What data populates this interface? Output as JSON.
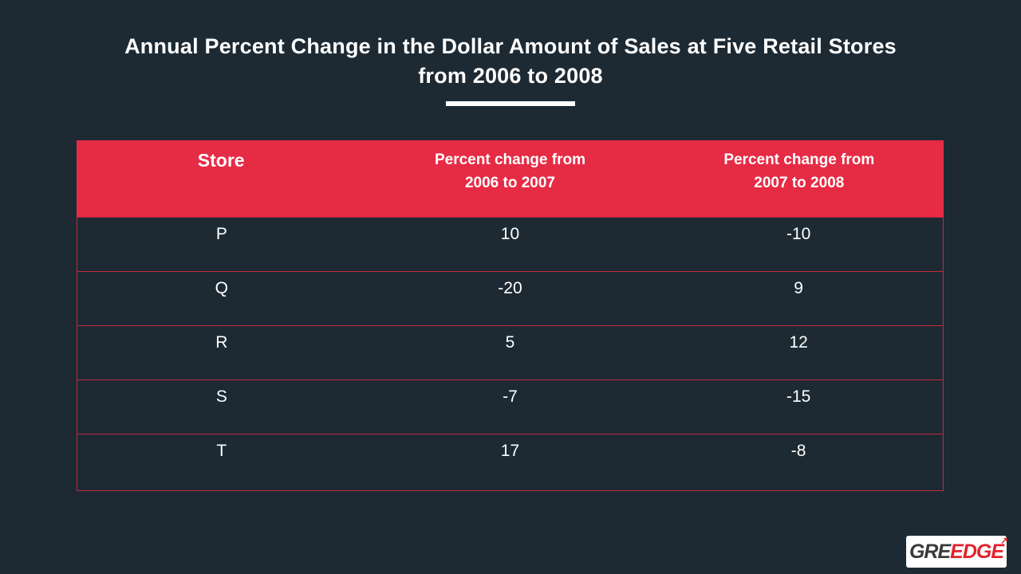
{
  "colors": {
    "background": "#1d2a34",
    "header_bg": "#e62b45",
    "table_border": "#c2293f",
    "title_text": "#ffffff",
    "cell_text": "#ffffff",
    "logo_bg": "#ffffff",
    "logo_gre_color": "#3a3a3a",
    "logo_edge_color": "#e1232d"
  },
  "title": {
    "line1": "Annual Percent Change in the Dollar Amount of Sales at Five Retail Stores",
    "line2": "from 2006 to 2008"
  },
  "table": {
    "header": {
      "col1": "Store",
      "col2_line1": "Percent change from",
      "col2_line2": "2006 to 2007",
      "col3_line1": "Percent change from",
      "col3_line2": "2007 to 2008"
    },
    "rows": [
      {
        "store": "P",
        "pct_2006_2007": "10",
        "pct_2007_2008": "-10"
      },
      {
        "store": "Q",
        "pct_2006_2007": "-20",
        "pct_2007_2008": "9"
      },
      {
        "store": "R",
        "pct_2006_2007": "5",
        "pct_2007_2008": "12"
      },
      {
        "store": "S",
        "pct_2006_2007": "-7",
        "pct_2007_2008": "-15"
      },
      {
        "store": "T",
        "pct_2006_2007": "17",
        "pct_2007_2008": "-8"
      }
    ]
  },
  "chart_data": {
    "type": "table",
    "title": "Annual Percent Change in the Dollar Amount of Sales at Five Retail Stores from 2006 to 2008",
    "columns": [
      "Store",
      "Percent change from 2006 to 2007",
      "Percent change from 2007 to 2008"
    ],
    "rows": [
      [
        "P",
        10,
        -10
      ],
      [
        "Q",
        -20,
        9
      ],
      [
        "R",
        5,
        12
      ],
      [
        "S",
        -7,
        -15
      ],
      [
        "T",
        17,
        -8
      ]
    ]
  },
  "logo": {
    "text_gre": "GRE",
    "text_edge": "EDGE"
  }
}
